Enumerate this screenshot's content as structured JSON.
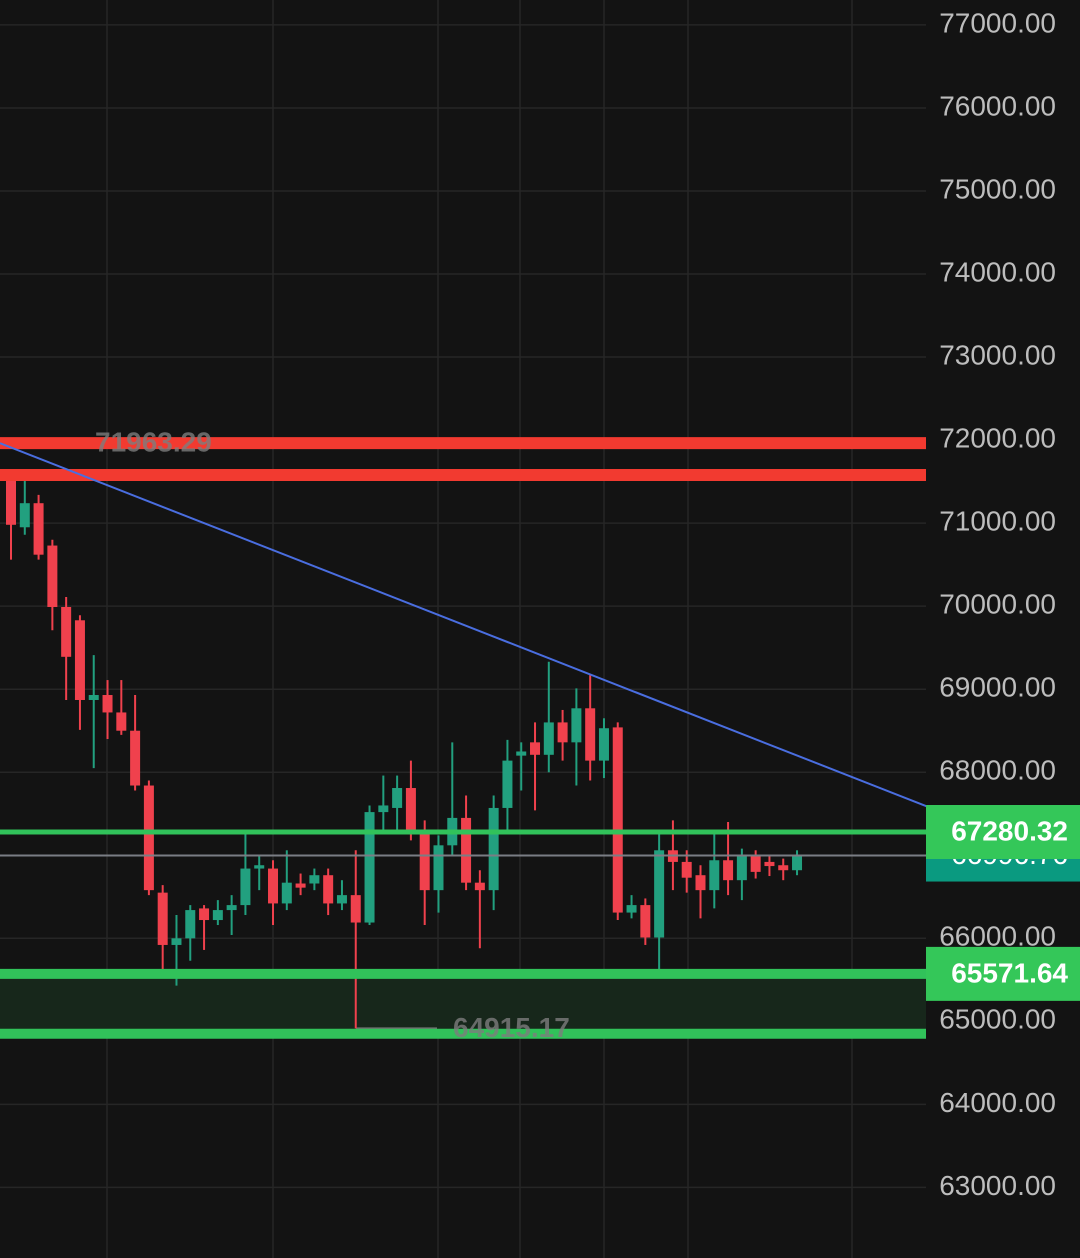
{
  "chart_data": {
    "type": "candlestick",
    "ylim": [
      62150,
      77300
    ],
    "yticks": [
      {
        "value": 63000,
        "label": "63000.00"
      },
      {
        "value": 64000,
        "label": "64000.00"
      },
      {
        "value": 65000,
        "label": "65000.00"
      },
      {
        "value": 66000,
        "label": "66000.00"
      },
      {
        "value": 67000,
        "label": "67000.00"
      },
      {
        "value": 68000,
        "label": "68000.00"
      },
      {
        "value": 69000,
        "label": "69000.00"
      },
      {
        "value": 70000,
        "label": "70000.00"
      },
      {
        "value": 71000,
        "label": "71000.00"
      },
      {
        "value": 72000,
        "label": "72000.00"
      },
      {
        "value": 73000,
        "label": "73000.00"
      },
      {
        "value": 74000,
        "label": "74000.00"
      },
      {
        "value": 75000,
        "label": "75000.00"
      },
      {
        "value": 76000,
        "label": "76000.00"
      },
      {
        "value": 77000,
        "label": "77000.00"
      }
    ],
    "grid": true,
    "up_color": "#22a07f",
    "down_color": "#f0414d",
    "open": [
      71520,
      70950,
      71240,
      70730,
      69990,
      69830,
      68870,
      68930,
      68720,
      68500,
      67840,
      66550,
      65920,
      66000,
      66360,
      66220,
      66340,
      66400,
      66840,
      66840,
      66420,
      66660,
      66660,
      66760,
      66420,
      66520,
      66190,
      67520,
      67570,
      67810,
      67280,
      66580,
      67120,
      67450,
      66670,
      66580,
      67570,
      68200,
      68360,
      68210,
      68600,
      68360,
      68770,
      68140,
      68540,
      66310,
      66400,
      66010,
      67060,
      66920,
      66760,
      66580,
      66940,
      66700,
      67000,
      66920,
      66880,
      66820
    ],
    "high": [
      71640,
      71640,
      71340,
      70800,
      70110,
      69890,
      69410,
      69110,
      69110,
      68930,
      67900,
      66640,
      66280,
      66400,
      66400,
      66460,
      66520,
      67300,
      67000,
      66940,
      67060,
      66780,
      66840,
      66840,
      66700,
      67060,
      67600,
      67960,
      67960,
      68140,
      67420,
      67240,
      68360,
      67720,
      66820,
      67720,
      68390,
      68360,
      68600,
      69330,
      68750,
      69010,
      69170,
      68650,
      68600,
      66520,
      66480,
      67300,
      67420,
      67060,
      66880,
      67280,
      67400,
      67080,
      67060,
      67000,
      66960,
      67060
    ],
    "low": [
      70560,
      70860,
      70560,
      69710,
      68870,
      68510,
      68050,
      68400,
      68450,
      67780,
      66520,
      65620,
      65430,
      65730,
      65860,
      66160,
      66040,
      66280,
      66580,
      66160,
      66340,
      66520,
      66580,
      66280,
      66340,
      64915.17,
      66160,
      67300,
      67300,
      67180,
      66160,
      66310,
      67000,
      66580,
      65880,
      66340,
      67300,
      67780,
      67540,
      68000,
      68140,
      67840,
      67900,
      67930,
      66220,
      66240,
      65920,
      65620,
      66580,
      66550,
      66240,
      66360,
      66520,
      66460,
      66720,
      66750,
      66700,
      66760
    ],
    "close": [
      70980,
      71240,
      70620,
      69990,
      69390,
      68870,
      68930,
      68720,
      68500,
      67840,
      66580,
      65920,
      66000,
      66340,
      66220,
      66340,
      66400,
      66840,
      66880,
      66420,
      66670,
      66610,
      66760,
      66420,
      66520,
      66190,
      67520,
      67600,
      67810,
      67280,
      66580,
      67120,
      67450,
      66670,
      66580,
      67570,
      68140,
      68250,
      68210,
      68600,
      68360,
      68770,
      68140,
      68530,
      66310,
      66400,
      66010,
      67060,
      66920,
      66730,
      66580,
      66940,
      66700,
      67000,
      66800,
      66870,
      66820,
      66997
    ],
    "levels": [
      {
        "value": 71963.29,
        "color": "#f23a30"
      },
      {
        "value": 71580,
        "color": "#f23a30"
      },
      {
        "value": 67280.32,
        "color": "#31c25a"
      },
      {
        "value": 65571.64,
        "color": "#31c25a"
      },
      {
        "value": 64850,
        "color": "#31c25a"
      }
    ],
    "zone_color": "#17271b",
    "trendline": {
      "color": "#4a6ee0",
      "start": [
        -0.8,
        71963
      ],
      "end": [
        66.4,
        67590
      ]
    },
    "last_price": 66996.76,
    "last_price_color": "#0a9a80",
    "high_annotation": 71963.29,
    "low_annotation": 64915.17
  }
}
